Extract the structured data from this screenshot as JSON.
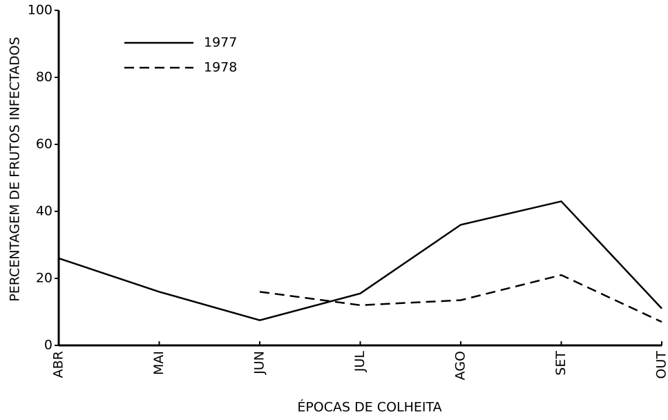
{
  "chart_data": {
    "type": "line",
    "x_label": "ÉPOCAS DE COLHEITA",
    "y_label": "PERCENTAGEM DE FRUTOS INFECTADOS",
    "categories": [
      "ABR",
      "MAI",
      "JUN",
      "JUL",
      "AGO",
      "SET",
      "OUT"
    ],
    "series": [
      {
        "name": "1977",
        "color": "#000000",
        "line_style": "solid",
        "values": [
          26,
          16,
          7.5,
          15.5,
          36,
          43,
          11
        ]
      },
      {
        "name": "1978",
        "color": "#000000",
        "line_style": "dashed",
        "values": [
          null,
          null,
          16,
          12,
          13.5,
          21,
          7
        ]
      }
    ],
    "ylim": [
      0,
      100
    ],
    "yticks": [
      0,
      20,
      40,
      60,
      80,
      100
    ],
    "legend": "upper left"
  }
}
